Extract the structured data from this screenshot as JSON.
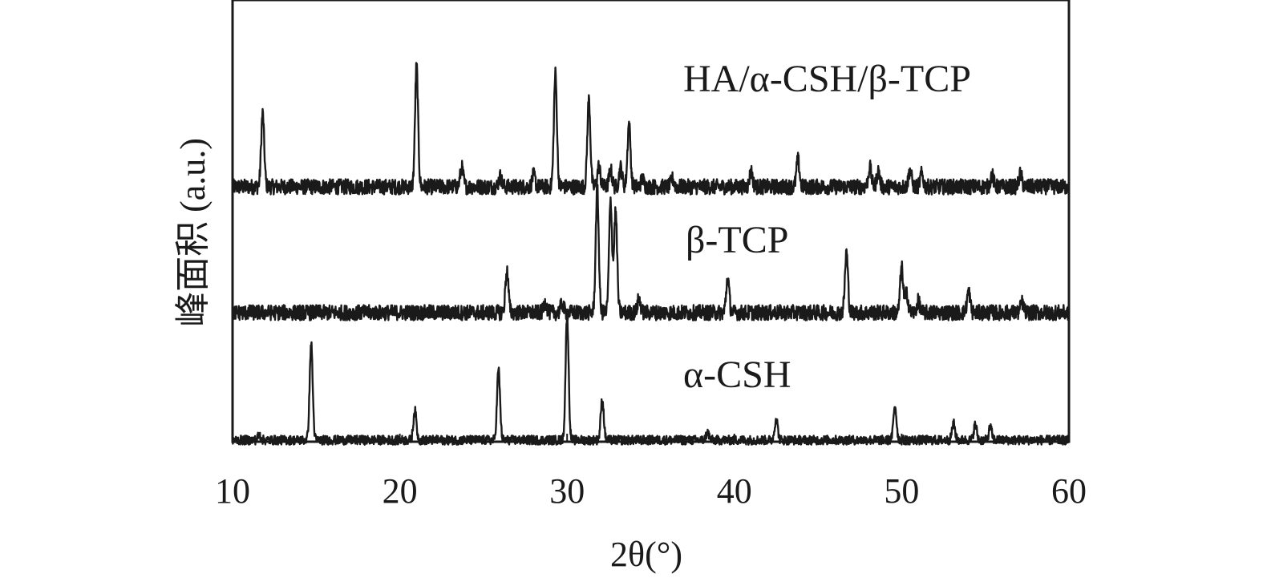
{
  "chart_data": {
    "type": "line",
    "xlabel": "2θ(°)",
    "ylabel": "峰面积 (a.u.)",
    "xlim": [
      10,
      60
    ],
    "x_ticks": [
      "10",
      "20",
      "30",
      "40",
      "50",
      "60"
    ],
    "y_ticks": [],
    "grid": false,
    "colors": {
      "line": "#1a1a1a",
      "frame": "#1a1a1a"
    },
    "series": [
      {
        "name": "HA/α-CSH/β-TCP",
        "noise": 1.0,
        "peaks": [
          [
            11.8,
            5.7
          ],
          [
            21.0,
            9.4
          ],
          [
            23.7,
            1.5
          ],
          [
            26.0,
            0.8
          ],
          [
            28.0,
            0.9
          ],
          [
            29.3,
            8.8
          ],
          [
            31.3,
            6.8
          ],
          [
            31.9,
            1.6
          ],
          [
            32.6,
            1.3
          ],
          [
            33.2,
            1.5
          ],
          [
            33.7,
            4.9
          ],
          [
            34.5,
            0.6
          ],
          [
            36.3,
            0.6
          ],
          [
            41.0,
            1.2
          ],
          [
            43.8,
            2.1
          ],
          [
            48.1,
            1.5
          ],
          [
            48.6,
            1.2
          ],
          [
            50.5,
            1.3
          ],
          [
            51.2,
            1.0
          ],
          [
            55.4,
            0.9
          ],
          [
            57.1,
            1.0
          ]
        ]
      },
      {
        "name": "β-TCP",
        "noise": 1.0,
        "peaks": [
          [
            26.4,
            3.3
          ],
          [
            28.7,
            0.8
          ],
          [
            29.7,
            0.7
          ],
          [
            31.8,
            9.6
          ],
          [
            32.6,
            8.7
          ],
          [
            32.9,
            7.9
          ],
          [
            34.3,
            1.1
          ],
          [
            39.6,
            2.7
          ],
          [
            46.7,
            4.7
          ],
          [
            50.0,
            3.5
          ],
          [
            50.3,
            1.5
          ],
          [
            51.0,
            0.9
          ],
          [
            54.0,
            1.7
          ],
          [
            57.2,
            0.8
          ]
        ]
      },
      {
        "name": "α-CSH",
        "noise": 0.6,
        "peaks": [
          [
            11.6,
            0.4
          ],
          [
            14.7,
            7.5
          ],
          [
            20.9,
            2.3
          ],
          [
            25.9,
            5.5
          ],
          [
            30.0,
            9.7
          ],
          [
            32.1,
            3.2
          ],
          [
            38.4,
            0.6
          ],
          [
            42.5,
            1.7
          ],
          [
            49.6,
            2.7
          ],
          [
            53.1,
            1.3
          ],
          [
            54.4,
            1.2
          ],
          [
            55.3,
            1.0
          ]
        ]
      }
    ]
  }
}
